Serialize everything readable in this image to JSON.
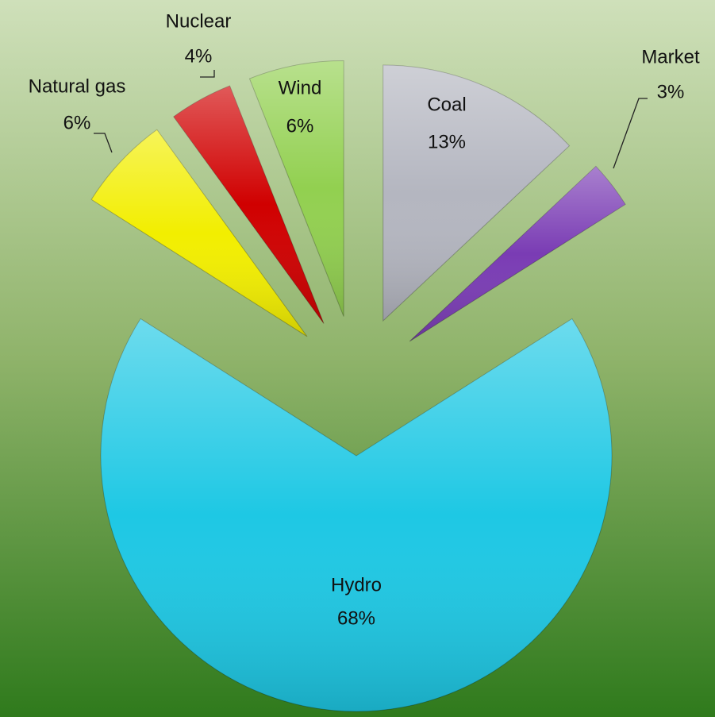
{
  "chart_data": {
    "type": "pie",
    "categories": [
      "Coal",
      "Market",
      "Hydro",
      "Natural gas",
      "Nuclear",
      "Wind"
    ],
    "values": [
      13,
      3,
      68,
      6,
      4,
      6
    ],
    "value_labels": [
      "13%",
      "3%",
      "68%",
      "6%",
      "4%",
      "6%"
    ],
    "colors": [
      "#b4b6c0",
      "#7a3cb4",
      "#1ec8e4",
      "#f2ee00",
      "#d00000",
      "#92d050"
    ]
  }
}
